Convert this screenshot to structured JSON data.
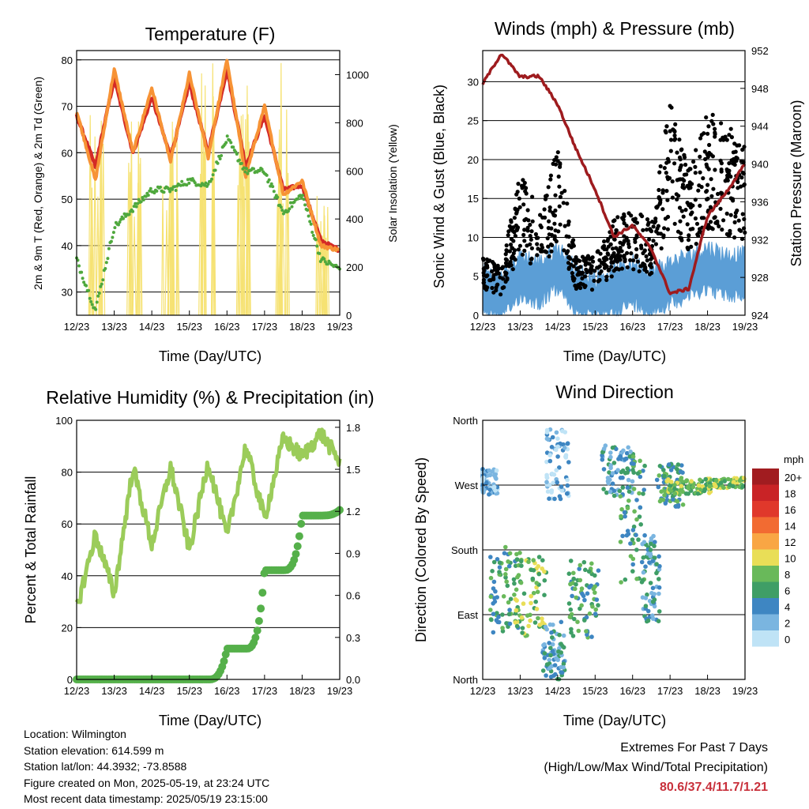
{
  "colors": {
    "temp_red": "#d42a26",
    "temp_orange": "#f79335",
    "td_green": "#4fa83d",
    "solar_yellow": "#f6e273",
    "wind_blue": "#5b9ed6",
    "gust_black": "#000000",
    "pressure_maroon": "#9e1b1e",
    "rh_lightgreen": "#9bcc5a",
    "precip_green": "#55b04a",
    "extremes_red": "#c8303b"
  },
  "x_ticks": [
    "12/23",
    "13/23",
    "14/23",
    "15/23",
    "16/23",
    "17/23",
    "18/23",
    "19/23"
  ],
  "xlabel": "Time (Day/UTC)",
  "charts": {
    "temperature": {
      "title": "Temperature (F)",
      "ylabel_left": "2m & 9m T (Red, Orange) & 2m Td (Green)",
      "ylabel_right": "Solar Insolation (Yellow)",
      "y_ticks_left": [
        "30",
        "40",
        "50",
        "60",
        "70",
        "80"
      ],
      "y_ticks_right": [
        "0",
        "200",
        "400",
        "600",
        "800",
        "1000"
      ]
    },
    "winds": {
      "title": "Winds (mph) & Pressure (mb)",
      "ylabel_left": "Sonic Wind & Gust (Blue, Black)",
      "ylabel_right": "Station Pressure (Maroon)",
      "y_ticks_left": [
        "0",
        "5",
        "10",
        "15",
        "20",
        "25",
        "30"
      ],
      "y_ticks_right": [
        "924",
        "928",
        "932",
        "936",
        "940",
        "944",
        "948",
        "952"
      ]
    },
    "humidity": {
      "title": "Relative Humidity (%) & Precipitation (in)",
      "ylabel_left": "Percent & Total Rainfall",
      "y_ticks_left": [
        "0",
        "20",
        "40",
        "60",
        "80",
        "100"
      ],
      "y_ticks_right": [
        "0.0",
        "0.3",
        "0.6",
        "0.9",
        "1.2",
        "1.5",
        "1.8"
      ]
    },
    "direction": {
      "title": "Wind Direction",
      "ylabel_left": "Direction (Colored By Speed)",
      "y_ticks_left": [
        "North",
        "East",
        "South",
        "West",
        "North"
      ],
      "legend_title": "mph",
      "legend_labels": [
        "20+",
        "18",
        "16",
        "14",
        "12",
        "10",
        "8",
        "6",
        "4",
        "2",
        "0"
      ],
      "legend_colors": [
        "#a11c20",
        "#c92326",
        "#e0382b",
        "#f26b32",
        "#f9a644",
        "#e9de57",
        "#69b95a",
        "#3f9e66",
        "#3e86c2",
        "#7ab5e0",
        "#bfe3f6"
      ]
    }
  },
  "chart_data": [
    {
      "type": "line",
      "title": "Temperature (F)",
      "x": [
        "12/23",
        "12.5",
        "13/23",
        "13.5",
        "14/23",
        "14.5",
        "15/23",
        "15.5",
        "16/23",
        "16.5",
        "17/23",
        "17.5",
        "18/23",
        "18.5",
        "19/23"
      ],
      "ylim": [
        25,
        82
      ],
      "series": [
        {
          "name": "2m T",
          "values": [
            69,
            54,
            78,
            60,
            74,
            58,
            77,
            59,
            80,
            55,
            70,
            51,
            54,
            40,
            39
          ]
        },
        {
          "name": "9m T",
          "values": [
            68,
            57,
            76,
            60,
            72,
            59,
            75,
            60,
            78,
            57,
            68,
            52,
            53,
            41,
            39
          ]
        },
        {
          "name": "2m Td",
          "values": [
            37,
            26,
            44,
            48,
            52,
            52,
            54,
            53,
            63,
            56,
            56,
            47,
            51,
            37,
            35
          ]
        }
      ],
      "y2_series": {
        "name": "Solar Insolation",
        "ylim": [
          0,
          1100
        ],
        "peaks": [
          900,
          1000,
          1000,
          1050,
          1050,
          1060,
          600
        ]
      }
    },
    {
      "type": "scatter",
      "title": "Winds (mph) & Pressure (mb)",
      "x": [
        "12/23",
        "12.5",
        "13/23",
        "13.5",
        "14/23",
        "14.5",
        "15/23",
        "15.5",
        "16/23",
        "16.5",
        "17/23",
        "17.5",
        "18/23",
        "18.5",
        "19/23"
      ],
      "ylim": [
        0,
        34
      ],
      "series": [
        {
          "name": "Sonic Wind",
          "values": [
            3,
            2,
            5,
            4,
            6,
            3,
            2,
            3,
            4,
            3,
            4,
            5,
            6,
            5,
            5
          ]
        },
        {
          "name": "Gust",
          "values": [
            5,
            4,
            12,
            9,
            14,
            5,
            5,
            8,
            9,
            8,
            18,
            12,
            17,
            16,
            15
          ]
        }
      ],
      "y2_series": {
        "name": "Station Pressure",
        "ylim": [
          924,
          952
        ],
        "values": [
          948.5,
          951.7,
          949.2,
          949.3,
          946.3,
          941.5,
          937.3,
          932.3,
          933.5,
          931.0,
          926.3,
          926.8,
          934.5,
          937.0,
          940.0
        ]
      }
    },
    {
      "type": "line",
      "title": "Relative Humidity (%) & Precipitation (in)",
      "x": [
        "12/23",
        "12.5",
        "13/23",
        "13.5",
        "14/23",
        "14.5",
        "15/23",
        "15.5",
        "16/23",
        "16.5",
        "17/23",
        "17.5",
        "18/23",
        "18.5",
        "19/23"
      ],
      "ylim": [
        0,
        100
      ],
      "series": [
        {
          "name": "Relative Humidity",
          "values": [
            27,
            56,
            33,
            82,
            52,
            82,
            50,
            84,
            55,
            90,
            62,
            93,
            86,
            95,
            84
          ]
        }
      ],
      "y2_series": {
        "name": "Total Precipitation",
        "ylim": [
          0,
          1.85
        ],
        "values": [
          0,
          0,
          0,
          0,
          0,
          0,
          0,
          0,
          0.22,
          0.22,
          0.78,
          0.78,
          1.17,
          1.17,
          1.21
        ]
      }
    },
    {
      "type": "scatter",
      "title": "Wind Direction",
      "x": [
        "12/23",
        "13/23",
        "14/23",
        "15/23",
        "16/23",
        "17/23",
        "18/23",
        "19/23"
      ],
      "yticks": [
        "North",
        "East",
        "South",
        "West",
        "North"
      ],
      "series": [
        {
          "name": "Direction (deg)",
          "values": [
            270,
            90,
            100,
            110,
            270,
            260,
            270,
            270
          ]
        }
      ]
    }
  ],
  "footer": {
    "location": "Location: Wilmington",
    "elevation": "Station elevation: 614.599 m",
    "latlon": "Station lat/lon: 44.3932; -73.8588",
    "created": "Figure created on Mon, 2025-05-19, at 23:24 UTC",
    "recent": "Most recent data timestamp: 2025/05/19 23:15:00",
    "extremes_title": "Extremes For Past 7 Days",
    "extremes_sub": "(High/Low/Max Wind/Total Precipitation)",
    "extremes_values": "80.6/37.4/11.7/1.21"
  }
}
